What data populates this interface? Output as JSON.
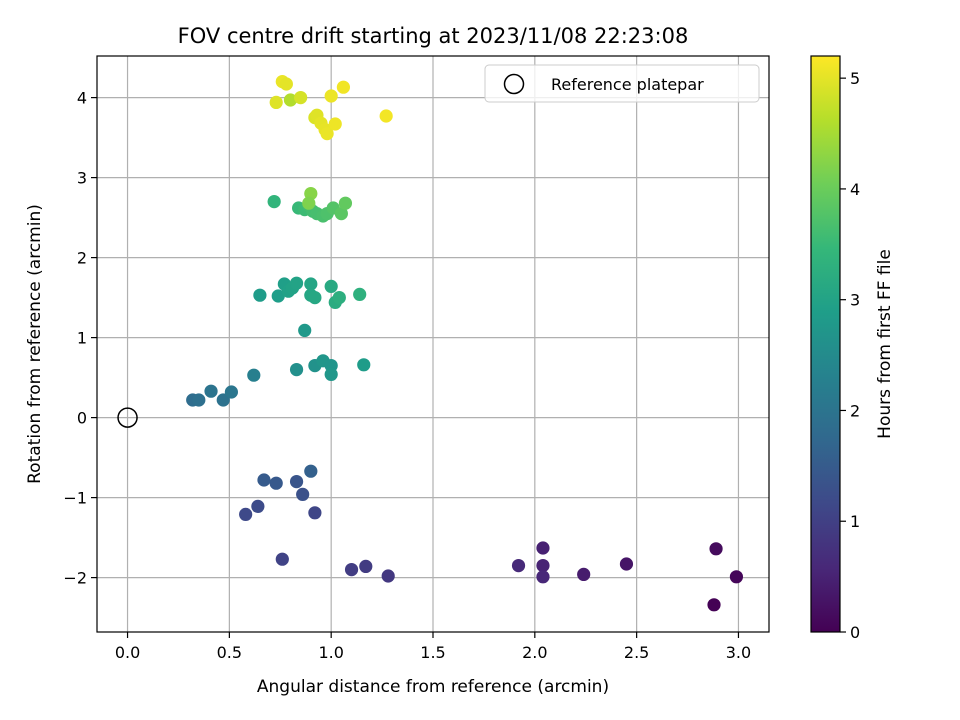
{
  "chart_data": {
    "type": "scatter",
    "title": "FOV centre drift starting at 2023/11/08 22:23:08",
    "xlabel": "Angular distance from reference (arcmin)",
    "ylabel": "Rotation from reference (arcmin)",
    "xlim": [
      -0.15,
      3.15
    ],
    "ylim": [
      -2.68,
      4.52
    ],
    "xticks": [
      0.0,
      0.5,
      1.0,
      1.5,
      2.0,
      2.5,
      3.0
    ],
    "xtick_labels": [
      "0.0",
      "0.5",
      "1.0",
      "1.5",
      "2.0",
      "2.5",
      "3.0"
    ],
    "yticks": [
      -2,
      -1,
      0,
      1,
      2,
      3,
      4
    ],
    "ytick_labels": [
      "−2",
      "−1",
      "0",
      "1",
      "2",
      "3",
      "4"
    ],
    "grid": true,
    "legend": {
      "location": "upper right",
      "entries": [
        {
          "label": "Reference platepar",
          "marker": "open-circle"
        }
      ]
    },
    "reference_point": {
      "x": 0.0,
      "y": 0.0
    },
    "colorbar": {
      "label": "Hours from first FF file",
      "colormap": "viridis",
      "range": [
        0,
        5.2
      ],
      "ticks": [
        0,
        1,
        2,
        3,
        4,
        5
      ],
      "tick_labels": [
        "0",
        "1",
        "2",
        "3",
        "4",
        "5"
      ],
      "colormap_stops": [
        "#440154",
        "#482878",
        "#3e4989",
        "#31688e",
        "#26828e",
        "#1f9e89",
        "#35b779",
        "#6ece58",
        "#b5de2b",
        "#fde725"
      ]
    },
    "series": [
      {
        "columns": [
          "x",
          "y",
          "hours"
        ],
        "points": [
          [
            2.88,
            -2.34,
            0.02
          ],
          [
            2.99,
            -1.99,
            0.08
          ],
          [
            2.89,
            -1.64,
            0.15
          ],
          [
            2.45,
            -1.83,
            0.3
          ],
          [
            2.24,
            -1.96,
            0.4
          ],
          [
            2.04,
            -1.63,
            0.48
          ],
          [
            2.04,
            -1.85,
            0.52
          ],
          [
            2.04,
            -1.99,
            0.58
          ],
          [
            1.92,
            -1.85,
            0.62
          ],
          [
            1.28,
            -1.98,
            0.85
          ],
          [
            1.17,
            -1.86,
            0.92
          ],
          [
            1.1,
            -1.9,
            0.95
          ],
          [
            0.76,
            -1.77,
            1.05
          ],
          [
            0.92,
            -1.19,
            1.1
          ],
          [
            0.58,
            -1.21,
            1.15
          ],
          [
            0.64,
            -1.11,
            1.22
          ],
          [
            0.86,
            -0.96,
            1.3
          ],
          [
            0.83,
            -0.8,
            1.38
          ],
          [
            0.73,
            -0.82,
            1.45
          ],
          [
            0.67,
            -0.78,
            1.5
          ],
          [
            0.9,
            -0.67,
            1.6
          ],
          [
            0.32,
            0.22,
            1.85
          ],
          [
            0.35,
            0.22,
            1.9
          ],
          [
            0.47,
            0.22,
            1.95
          ],
          [
            0.41,
            0.33,
            2.0
          ],
          [
            0.51,
            0.32,
            2.05
          ],
          [
            0.62,
            0.53,
            2.25
          ],
          [
            0.83,
            0.6,
            2.6
          ],
          [
            0.92,
            0.65,
            2.65
          ],
          [
            0.96,
            0.71,
            2.72
          ],
          [
            1.0,
            0.65,
            2.7
          ],
          [
            1.0,
            0.54,
            2.75
          ],
          [
            1.16,
            0.66,
            2.85
          ],
          [
            0.87,
            1.09,
            2.78
          ],
          [
            0.65,
            1.53,
            2.85
          ],
          [
            0.74,
            1.52,
            2.9
          ],
          [
            0.77,
            1.67,
            2.92
          ],
          [
            0.79,
            1.58,
            2.95
          ],
          [
            0.81,
            1.62,
            2.98
          ],
          [
            0.83,
            1.68,
            3.0
          ],
          [
            0.9,
            1.67,
            3.05
          ],
          [
            0.9,
            1.53,
            3.08
          ],
          [
            0.92,
            1.5,
            3.1
          ],
          [
            1.0,
            1.64,
            3.15
          ],
          [
            1.02,
            1.44,
            3.2
          ],
          [
            1.04,
            1.5,
            3.25
          ],
          [
            1.14,
            1.54,
            3.3
          ],
          [
            0.72,
            2.7,
            3.4
          ],
          [
            0.84,
            2.62,
            3.5
          ],
          [
            0.87,
            2.6,
            3.55
          ],
          [
            0.89,
            2.65,
            3.6
          ],
          [
            0.91,
            2.58,
            3.62
          ],
          [
            0.93,
            2.55,
            3.65
          ],
          [
            0.96,
            2.52,
            3.68
          ],
          [
            0.98,
            2.55,
            3.72
          ],
          [
            1.01,
            2.62,
            3.78
          ],
          [
            1.05,
            2.55,
            3.85
          ],
          [
            1.07,
            2.68,
            3.92
          ],
          [
            0.9,
            2.8,
            4.25
          ],
          [
            0.89,
            2.68,
            4.18
          ],
          [
            0.76,
            4.2,
            5.05
          ],
          [
            0.78,
            4.17,
            5.0
          ],
          [
            0.73,
            3.94,
            4.95
          ],
          [
            0.8,
            3.97,
            4.6
          ],
          [
            0.85,
            4.0,
            4.88
          ],
          [
            0.92,
            3.75,
            4.92
          ],
          [
            0.93,
            3.78,
            4.96
          ],
          [
            0.95,
            3.68,
            5.0
          ],
          [
            0.97,
            3.6,
            5.02
          ],
          [
            0.98,
            3.55,
            5.05
          ],
          [
            1.0,
            4.02,
            5.06
          ],
          [
            1.02,
            3.67,
            5.08
          ],
          [
            1.06,
            4.13,
            5.1
          ],
          [
            1.27,
            3.77,
            5.12
          ]
        ]
      }
    ]
  }
}
